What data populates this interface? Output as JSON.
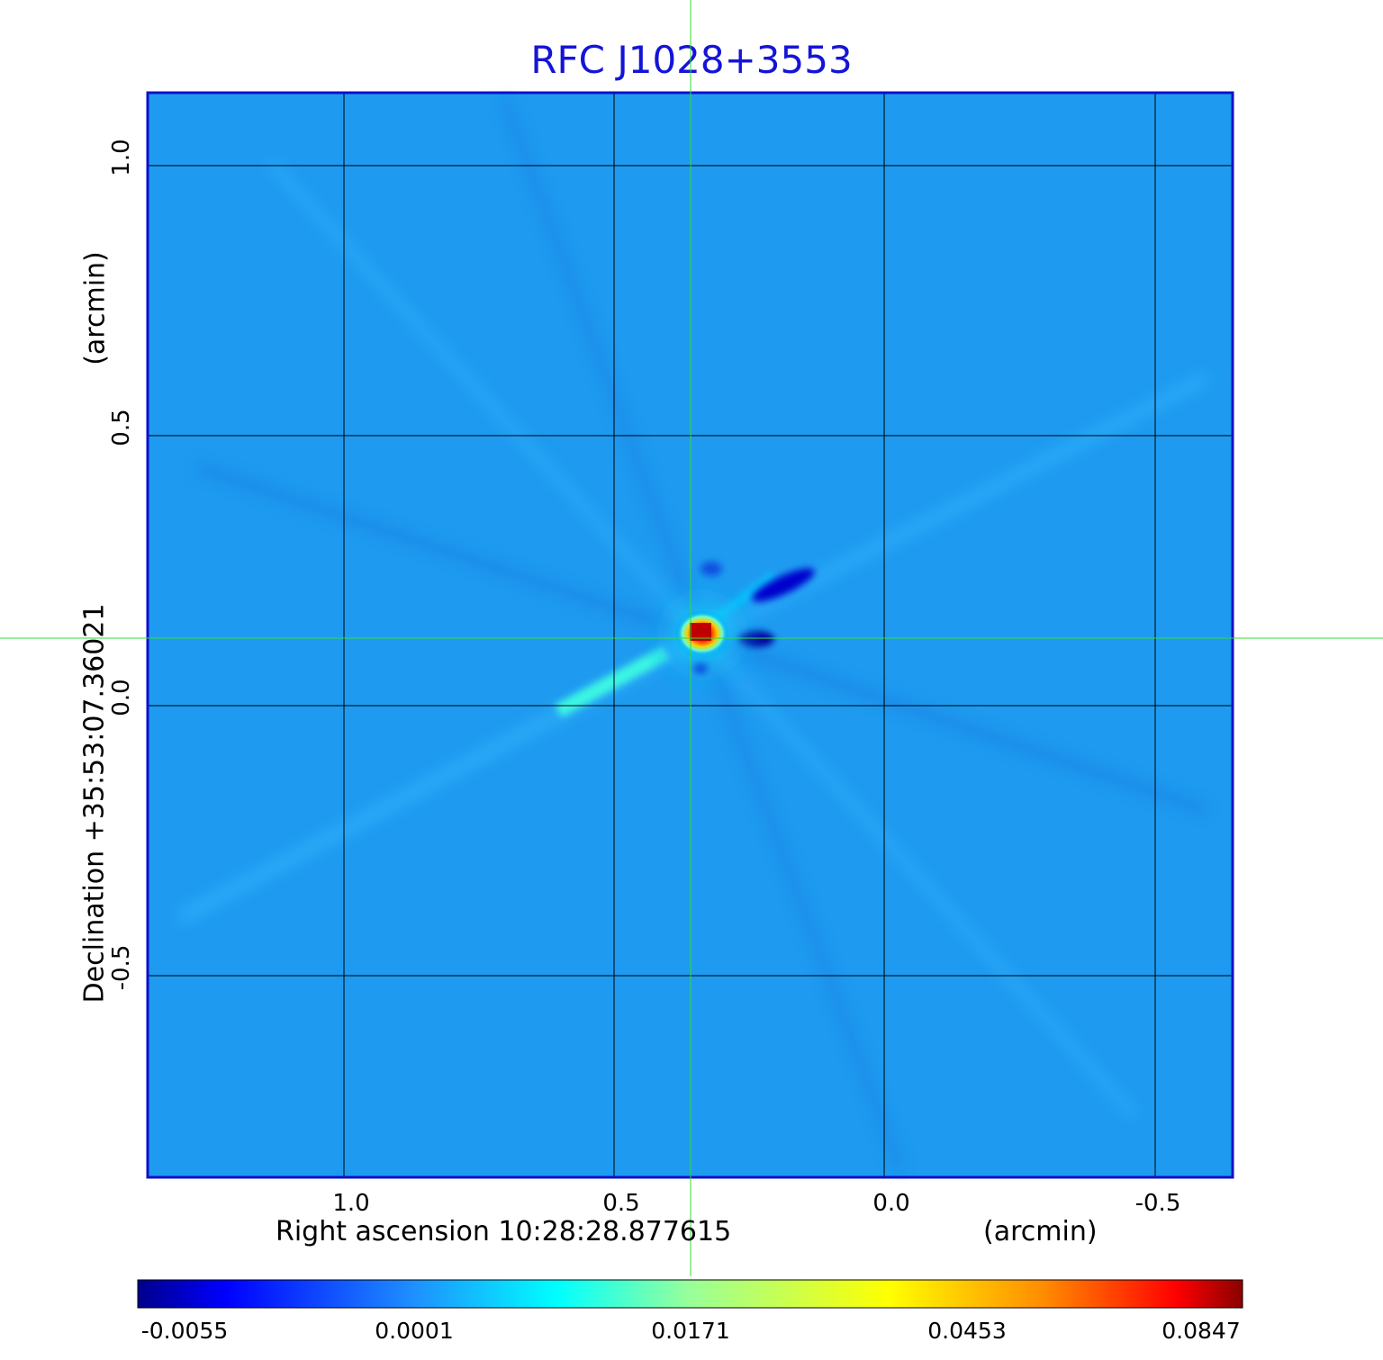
{
  "title": "RFC J1028+3553",
  "xaxis": {
    "label": "Right ascension  10:28:28.877615",
    "unit": "(arcmin)",
    "ticks": [
      "1.0",
      "0.5",
      "0.0",
      "-0.5"
    ]
  },
  "yaxis": {
    "label": "Declination  +35:53:07.36021",
    "unit": "(arcmin)",
    "ticks": [
      "1.0",
      "0.5",
      "0.0",
      "-0.5"
    ]
  },
  "colorbar": {
    "ticks": [
      "-0.0055",
      "0.0001",
      "0.0171",
      "0.0453",
      "0.0847"
    ],
    "colors": [
      "#00008b",
      "#0033ff",
      "#1e90ff",
      "#00ffff",
      "#ffff00",
      "#ff8c00",
      "#ff0000",
      "#8b0000"
    ]
  },
  "colors": {
    "title": "#1414d8",
    "frame": "#1010c8",
    "background_map": "#1e9bf0",
    "crosshair": "#33dd33",
    "grid": "#000000"
  }
}
